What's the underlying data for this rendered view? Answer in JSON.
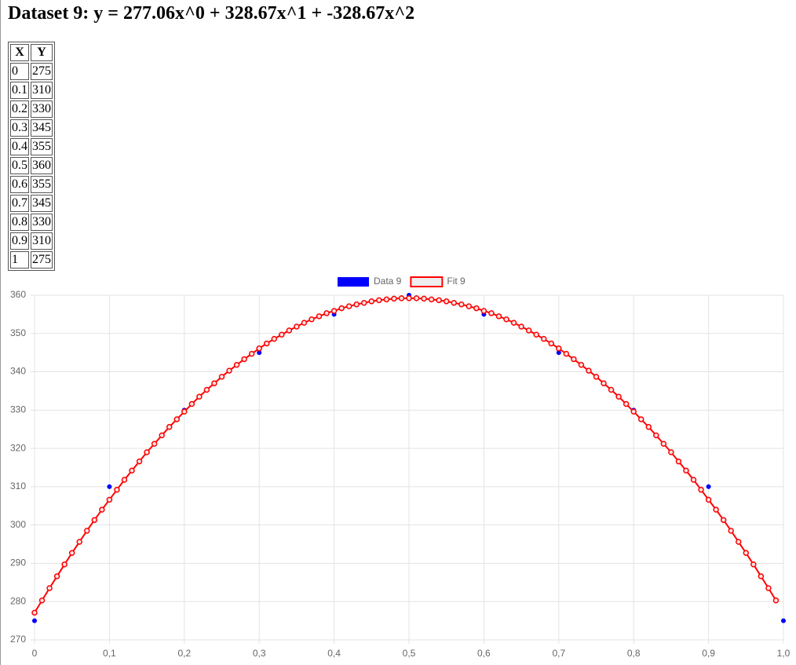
{
  "title": "Dataset 9: y = 277.06x^0 + 328.67x^1 + -328.67x^2",
  "table": {
    "header": [
      "X",
      "Y"
    ],
    "rows": [
      [
        "0",
        "275"
      ],
      [
        "0.1",
        "310"
      ],
      [
        "0.2",
        "330"
      ],
      [
        "0.3",
        "345"
      ],
      [
        "0.4",
        "355"
      ],
      [
        "0.5",
        "360"
      ],
      [
        "0.6",
        "355"
      ],
      [
        "0.7",
        "345"
      ],
      [
        "0.8",
        "330"
      ],
      [
        "0.9",
        "310"
      ],
      [
        "1",
        "275"
      ]
    ]
  },
  "chart_data": {
    "type": "scatter",
    "series": [
      {
        "name": "Data 9",
        "type": "scatter",
        "color": "#0000ff",
        "x": [
          0,
          0.1,
          0.2,
          0.3,
          0.4,
          0.5,
          0.6,
          0.7,
          0.8,
          0.9,
          1
        ],
        "values": [
          275,
          310,
          330,
          345,
          355,
          360,
          355,
          345,
          330,
          310,
          275
        ]
      },
      {
        "name": "Fit 9",
        "type": "line",
        "color": "#ff0000",
        "x": [
          0,
          0.01,
          0.02,
          0.03,
          0.04,
          0.05,
          0.06,
          0.07,
          0.08,
          0.09,
          0.1,
          0.11,
          0.12,
          0.13,
          0.14,
          0.15,
          0.16,
          0.17,
          0.18,
          0.19,
          0.2,
          0.21,
          0.22,
          0.23,
          0.24,
          0.25,
          0.26,
          0.27,
          0.28,
          0.29,
          0.3,
          0.31,
          0.32,
          0.33,
          0.34,
          0.35,
          0.36,
          0.37,
          0.38,
          0.39,
          0.4,
          0.41,
          0.42,
          0.43,
          0.44,
          0.45,
          0.46,
          0.47,
          0.48,
          0.49,
          0.5,
          0.51,
          0.52,
          0.53,
          0.54,
          0.55,
          0.56,
          0.57,
          0.58,
          0.59,
          0.6,
          0.61,
          0.62,
          0.63,
          0.64,
          0.65,
          0.66,
          0.67,
          0.68,
          0.69,
          0.7,
          0.71,
          0.72,
          0.73,
          0.74,
          0.75,
          0.76,
          0.77,
          0.78,
          0.79,
          0.8,
          0.81,
          0.82,
          0.83,
          0.84,
          0.85,
          0.86,
          0.87,
          0.88,
          0.89,
          0.9,
          0.91,
          0.92,
          0.93,
          0.94,
          0.95,
          0.96,
          0.97,
          0.98,
          0.99
        ],
        "values": [
          277.1,
          280.3,
          283.5,
          286.6,
          289.7,
          292.7,
          295.6,
          298.5,
          301.3,
          304.0,
          306.6,
          309.2,
          311.8,
          314.2,
          316.6,
          319.0,
          321.2,
          323.4,
          325.6,
          327.6,
          329.6,
          331.6,
          333.5,
          335.3,
          337.0,
          338.7,
          340.3,
          341.8,
          343.3,
          344.7,
          346.1,
          347.4,
          348.6,
          349.7,
          350.8,
          351.8,
          352.8,
          353.7,
          354.5,
          355.3,
          355.9,
          356.6,
          357.1,
          357.6,
          358.0,
          358.4,
          358.7,
          358.9,
          359.1,
          359.2,
          359.2,
          359.2,
          359.1,
          358.9,
          358.7,
          358.4,
          358.0,
          357.6,
          357.1,
          356.6,
          355.9,
          355.3,
          354.5,
          353.7,
          352.8,
          351.8,
          350.8,
          349.7,
          348.6,
          347.4,
          346.1,
          344.7,
          343.3,
          341.8,
          340.3,
          338.7,
          337.0,
          335.3,
          333.5,
          331.6,
          329.6,
          327.6,
          325.6,
          323.4,
          321.2,
          319.0,
          316.6,
          314.2,
          311.8,
          309.2,
          306.6,
          304.0,
          301.3,
          298.5,
          295.6,
          292.7,
          289.7,
          286.6,
          283.5,
          280.3
        ]
      }
    ],
    "xlim": [
      0,
      1
    ],
    "xticks": [
      0,
      {
        "value": 0.1,
        "label": "0,1"
      },
      {
        "value": 0.2,
        "label": "0,2"
      },
      {
        "value": 0.3,
        "label": "0,3"
      },
      {
        "value": 0.4,
        "label": "0,4"
      },
      {
        "value": 0.5,
        "label": "0,5"
      },
      {
        "value": 0.6,
        "label": "0,6"
      },
      {
        "value": 0.7,
        "label": "0,7"
      },
      {
        "value": 0.8,
        "label": "0,8"
      },
      {
        "value": 0.9,
        "label": "0,9"
      },
      {
        "value": 1,
        "label": "1,0"
      }
    ],
    "ylim": [
      270,
      360
    ],
    "yticks": [
      270,
      280,
      290,
      300,
      310,
      320,
      330,
      340,
      350,
      360
    ],
    "grid": true,
    "legend": "top"
  }
}
